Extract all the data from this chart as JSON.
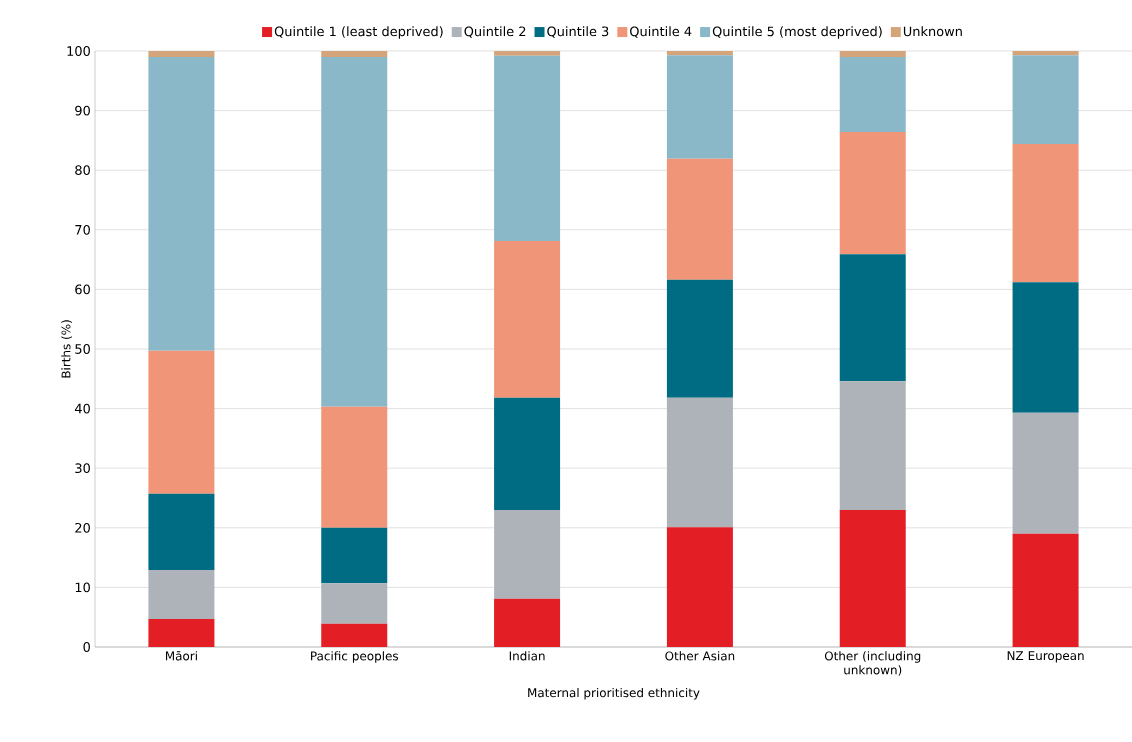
{
  "chart_data": {
    "type": "bar",
    "stacked": true,
    "xlabel": "Maternal prioritised ethnicity",
    "ylabel": "Births (%)",
    "categories": [
      "Māori",
      "Pacific peoples",
      "Indian",
      "Other Asian",
      "Other (including unknown)",
      "NZ European"
    ],
    "series": [
      {
        "name": "Quintile 1 (least deprived)",
        "color": "#e31e24",
        "values": [
          4.7,
          3.9,
          8.1,
          20.1,
          23.0,
          19.0
        ]
      },
      {
        "name": "Quintile 2",
        "color": "#adb3b9",
        "values": [
          8.2,
          6.8,
          14.9,
          21.7,
          21.6,
          20.3
        ]
      },
      {
        "name": "Quintile 3",
        "color": "#006c84",
        "values": [
          12.8,
          9.3,
          18.8,
          19.8,
          21.3,
          21.9
        ]
      },
      {
        "name": "Quintile 4",
        "color": "#f09577",
        "values": [
          24.0,
          20.3,
          26.3,
          20.3,
          20.5,
          23.2
        ]
      },
      {
        "name": "Quintile 5 (most deprived)",
        "color": "#8bb8c8",
        "values": [
          49.3,
          58.7,
          31.1,
          17.4,
          12.6,
          14.9
        ]
      },
      {
        "name": "Unknown",
        "color": "#d4a57a",
        "values": [
          1.0,
          1.0,
          0.8,
          0.7,
          1.0,
          0.7
        ]
      }
    ],
    "ylim": [
      0,
      100
    ],
    "yticks": [
      0,
      10,
      20,
      30,
      40,
      50,
      60,
      70,
      80,
      90,
      100
    ],
    "grid": "y",
    "legend": "top"
  }
}
